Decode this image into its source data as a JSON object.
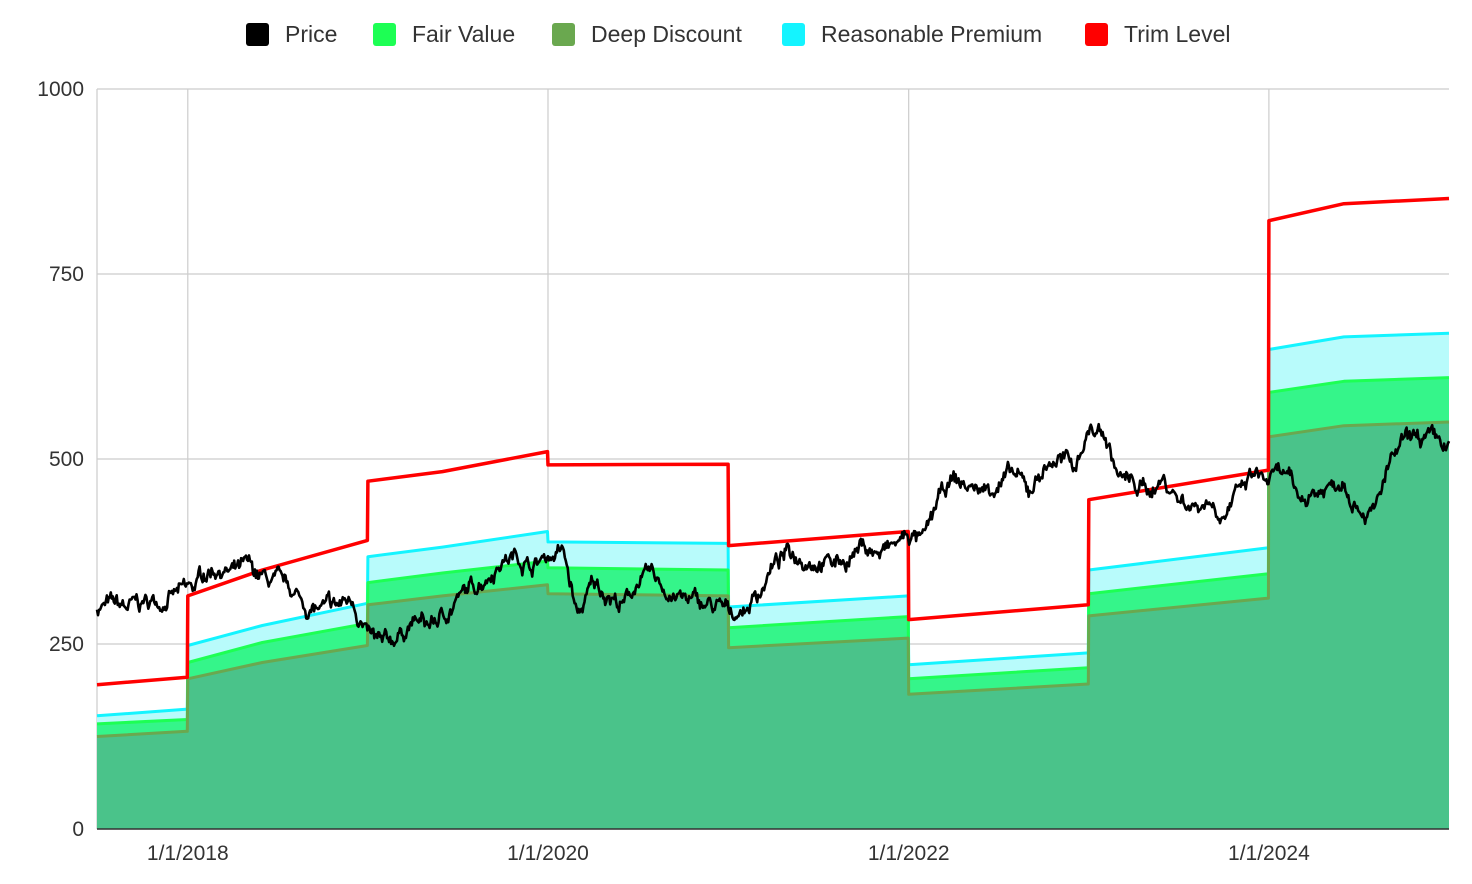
{
  "chart_data": {
    "type": "area",
    "legend_position": "top",
    "grid": true,
    "ylim": [
      0,
      1000
    ],
    "xlim": [
      "2017-07-01",
      "2024-12-31"
    ],
    "y_ticks": [
      "0",
      "250",
      "500",
      "750",
      "1000"
    ],
    "x_ticks": [
      {
        "date": "2018-01-01",
        "label": "1/1/2018"
      },
      {
        "date": "2020-01-01",
        "label": "1/1/2020"
      },
      {
        "date": "2022-01-01",
        "label": "1/1/2022"
      },
      {
        "date": "2024-01-01",
        "label": "1/1/2024"
      }
    ],
    "series": [
      {
        "name": "Price",
        "color": "#000000",
        "kind": "line",
        "points": [
          [
            "2017-07-01",
            300
          ],
          [
            "2017-08-01",
            302
          ],
          [
            "2017-09-01",
            298
          ],
          [
            "2017-10-01",
            305
          ],
          [
            "2017-11-01",
            308
          ],
          [
            "2017-12-01",
            315
          ],
          [
            "2018-01-15",
            325
          ],
          [
            "2018-02-01",
            345
          ],
          [
            "2018-03-01",
            355
          ],
          [
            "2018-04-01",
            345
          ],
          [
            "2018-05-01",
            352
          ],
          [
            "2018-06-01",
            338
          ],
          [
            "2018-07-01",
            330
          ],
          [
            "2018-08-01",
            322
          ],
          [
            "2018-09-01",
            298
          ],
          [
            "2018-10-01",
            295
          ],
          [
            "2018-11-01",
            300
          ],
          [
            "2018-12-01",
            312
          ],
          [
            "2019-01-01",
            260
          ],
          [
            "2019-02-01",
            245
          ],
          [
            "2019-03-01",
            260
          ],
          [
            "2019-04-01",
            280
          ],
          [
            "2019-05-01",
            275
          ],
          [
            "2019-06-01",
            285
          ],
          [
            "2019-07-01",
            310
          ],
          [
            "2019-08-01",
            325
          ],
          [
            "2019-09-01",
            345
          ],
          [
            "2019-10-01",
            365
          ],
          [
            "2019-11-01",
            370
          ],
          [
            "2019-12-01",
            355
          ],
          [
            "2020-01-01",
            370
          ],
          [
            "2020-02-01",
            375
          ],
          [
            "2020-03-01",
            285
          ],
          [
            "2020-04-01",
            330
          ],
          [
            "2020-05-01",
            320
          ],
          [
            "2020-06-01",
            300
          ],
          [
            "2020-07-01",
            335
          ],
          [
            "2020-08-01",
            340
          ],
          [
            "2020-09-01",
            320
          ],
          [
            "2020-10-01",
            310
          ],
          [
            "2020-11-01",
            305
          ],
          [
            "2020-12-01",
            300
          ],
          [
            "2021-01-01",
            292
          ],
          [
            "2021-02-01",
            296
          ],
          [
            "2021-03-01",
            318
          ],
          [
            "2021-04-01",
            355
          ],
          [
            "2021-05-01",
            372
          ],
          [
            "2021-06-01",
            368
          ],
          [
            "2021-07-01",
            365
          ],
          [
            "2021-08-01",
            360
          ],
          [
            "2021-09-01",
            366
          ],
          [
            "2021-10-01",
            385
          ],
          [
            "2021-11-01",
            370
          ],
          [
            "2021-12-01",
            382
          ],
          [
            "2022-01-01",
            398
          ],
          [
            "2022-02-01",
            388
          ],
          [
            "2022-03-01",
            442
          ],
          [
            "2022-04-01",
            472
          ],
          [
            "2022-05-01",
            462
          ],
          [
            "2022-06-01",
            458
          ],
          [
            "2022-07-01",
            468
          ],
          [
            "2022-08-01",
            478
          ],
          [
            "2022-09-01",
            455
          ],
          [
            "2022-10-01",
            488
          ],
          [
            "2022-11-01",
            502
          ],
          [
            "2022-12-01",
            488
          ],
          [
            "2023-01-01",
            540
          ],
          [
            "2023-02-01",
            535
          ],
          [
            "2023-03-01",
            478
          ],
          [
            "2023-04-01",
            465
          ],
          [
            "2023-05-01",
            458
          ],
          [
            "2023-06-01",
            472
          ],
          [
            "2023-07-01",
            448
          ],
          [
            "2023-08-01",
            438
          ],
          [
            "2023-09-01",
            445
          ],
          [
            "2023-10-01",
            428
          ],
          [
            "2023-11-01",
            452
          ],
          [
            "2023-12-01",
            478
          ],
          [
            "2024-01-01",
            470
          ],
          [
            "2024-02-01",
            480
          ],
          [
            "2024-03-01",
            445
          ],
          [
            "2024-04-01",
            455
          ],
          [
            "2024-05-01",
            462
          ],
          [
            "2024-06-01",
            475
          ],
          [
            "2024-07-01",
            440
          ],
          [
            "2024-08-01",
            425
          ],
          [
            "2024-09-01",
            490
          ],
          [
            "2024-10-01",
            520
          ],
          [
            "2024-11-01",
            528
          ],
          [
            "2024-12-31",
            515
          ]
        ]
      },
      {
        "name": "Fair Value",
        "color": "#1dff54",
        "kind": "area",
        "points": [
          [
            "2017-07-01",
            142
          ],
          [
            "2017-12-31",
            148
          ],
          [
            "2018-01-01",
            225
          ],
          [
            "2018-06-01",
            252
          ],
          [
            "2018-12-31",
            278
          ],
          [
            "2019-01-01",
            333
          ],
          [
            "2019-06-01",
            346
          ],
          [
            "2019-12-31",
            362
          ],
          [
            "2020-01-01",
            353
          ],
          [
            "2020-12-31",
            350
          ],
          [
            "2021-01-01",
            272
          ],
          [
            "2021-12-31",
            287
          ],
          [
            "2022-01-01",
            203
          ],
          [
            "2022-12-31",
            218
          ],
          [
            "2023-01-01",
            318
          ],
          [
            "2023-12-31",
            345
          ],
          [
            "2024-01-01",
            590
          ],
          [
            "2024-06-01",
            605
          ],
          [
            "2024-12-31",
            610
          ]
        ]
      },
      {
        "name": "Deep Discount",
        "color": "#6aa84f",
        "kind": "area",
        "points": [
          [
            "2017-07-01",
            125
          ],
          [
            "2017-12-31",
            132
          ],
          [
            "2018-01-01",
            203
          ],
          [
            "2018-06-01",
            225
          ],
          [
            "2018-12-31",
            248
          ],
          [
            "2019-01-01",
            303
          ],
          [
            "2019-06-01",
            315
          ],
          [
            "2019-12-31",
            330
          ],
          [
            "2020-01-01",
            318
          ],
          [
            "2020-12-31",
            315
          ],
          [
            "2021-01-01",
            245
          ],
          [
            "2021-12-31",
            258
          ],
          [
            "2022-01-01",
            182
          ],
          [
            "2022-12-31",
            196
          ],
          [
            "2023-01-01",
            288
          ],
          [
            "2023-12-31",
            312
          ],
          [
            "2024-01-01",
            530
          ],
          [
            "2024-06-01",
            545
          ],
          [
            "2024-12-31",
            550
          ]
        ]
      },
      {
        "name": "Reasonable Premium",
        "color": "#14f4ff",
        "kind": "area",
        "points": [
          [
            "2017-07-01",
            153
          ],
          [
            "2017-12-31",
            162
          ],
          [
            "2018-01-01",
            248
          ],
          [
            "2018-06-01",
            275
          ],
          [
            "2018-12-31",
            305
          ],
          [
            "2019-01-01",
            368
          ],
          [
            "2019-06-01",
            381
          ],
          [
            "2019-12-31",
            402
          ],
          [
            "2020-01-01",
            388
          ],
          [
            "2020-12-31",
            386
          ],
          [
            "2021-01-01",
            300
          ],
          [
            "2021-12-31",
            315
          ],
          [
            "2022-01-01",
            222
          ],
          [
            "2022-12-31",
            238
          ],
          [
            "2023-01-01",
            350
          ],
          [
            "2023-12-31",
            380
          ],
          [
            "2024-01-01",
            648
          ],
          [
            "2024-06-01",
            665
          ],
          [
            "2024-12-31",
            670
          ]
        ]
      },
      {
        "name": "Trim Level",
        "color": "#ff0000",
        "kind": "line",
        "points": [
          [
            "2017-07-01",
            195
          ],
          [
            "2017-12-31",
            205
          ],
          [
            "2018-01-01",
            315
          ],
          [
            "2018-06-01",
            350
          ],
          [
            "2018-12-31",
            390
          ],
          [
            "2019-01-01",
            470
          ],
          [
            "2019-06-01",
            483
          ],
          [
            "2019-12-31",
            510
          ],
          [
            "2020-01-01",
            492
          ],
          [
            "2020-12-31",
            493
          ],
          [
            "2021-01-01",
            383
          ],
          [
            "2021-12-31",
            402
          ],
          [
            "2022-01-01",
            283
          ],
          [
            "2022-12-31",
            303
          ],
          [
            "2023-01-01",
            445
          ],
          [
            "2023-12-31",
            485
          ],
          [
            "2024-01-01",
            822
          ],
          [
            "2024-06-01",
            845
          ],
          [
            "2024-12-31",
            852
          ]
        ]
      }
    ]
  }
}
